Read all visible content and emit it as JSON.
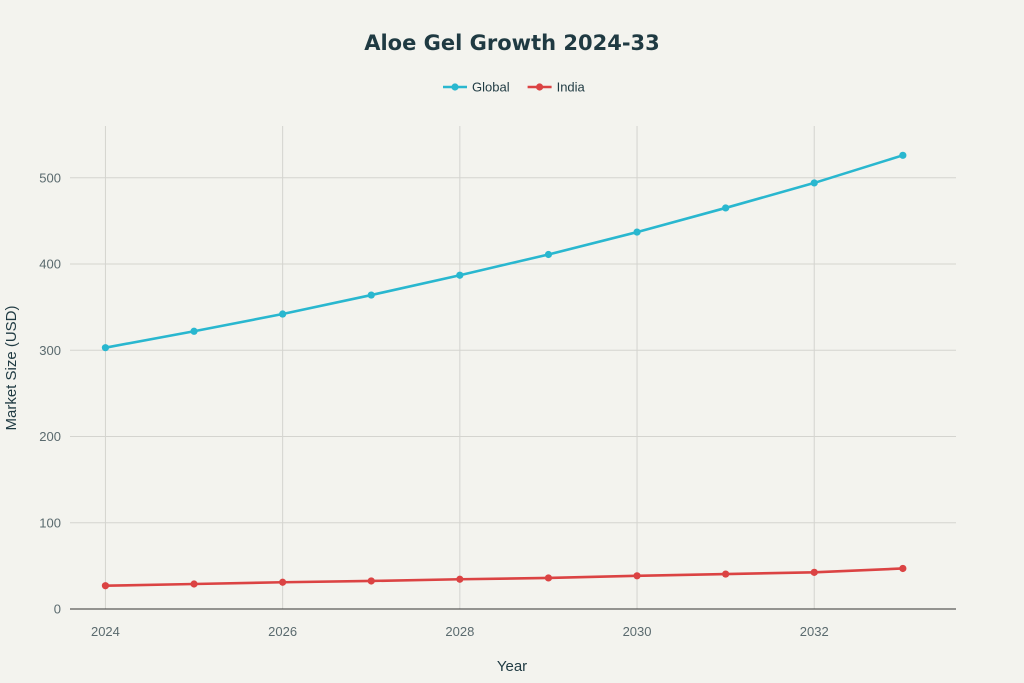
{
  "chart_data": {
    "type": "line",
    "title": "Aloe Gel Growth 2024-33",
    "xlabel": "Year",
    "ylabel": "Market Size (USD)",
    "x": [
      2024,
      2025,
      2026,
      2027,
      2028,
      2029,
      2030,
      2031,
      2032,
      2033
    ],
    "xticks": [
      2024,
      2026,
      2028,
      2030,
      2032
    ],
    "yticks": [
      0,
      100,
      200,
      300,
      400,
      500
    ],
    "xlim": [
      2023.6,
      2033.6
    ],
    "ylim": [
      0,
      560
    ],
    "grid": true,
    "legend_position": "top-center",
    "series": [
      {
        "name": "Global",
        "color": "#29b7cf",
        "values": [
          303,
          322,
          342,
          364,
          387,
          411,
          437,
          465,
          494,
          526
        ]
      },
      {
        "name": "India",
        "color": "#db4343",
        "values": [
          27,
          29,
          31,
          32.5,
          34.5,
          36,
          38.5,
          40.5,
          42.5,
          47
        ]
      }
    ]
  }
}
